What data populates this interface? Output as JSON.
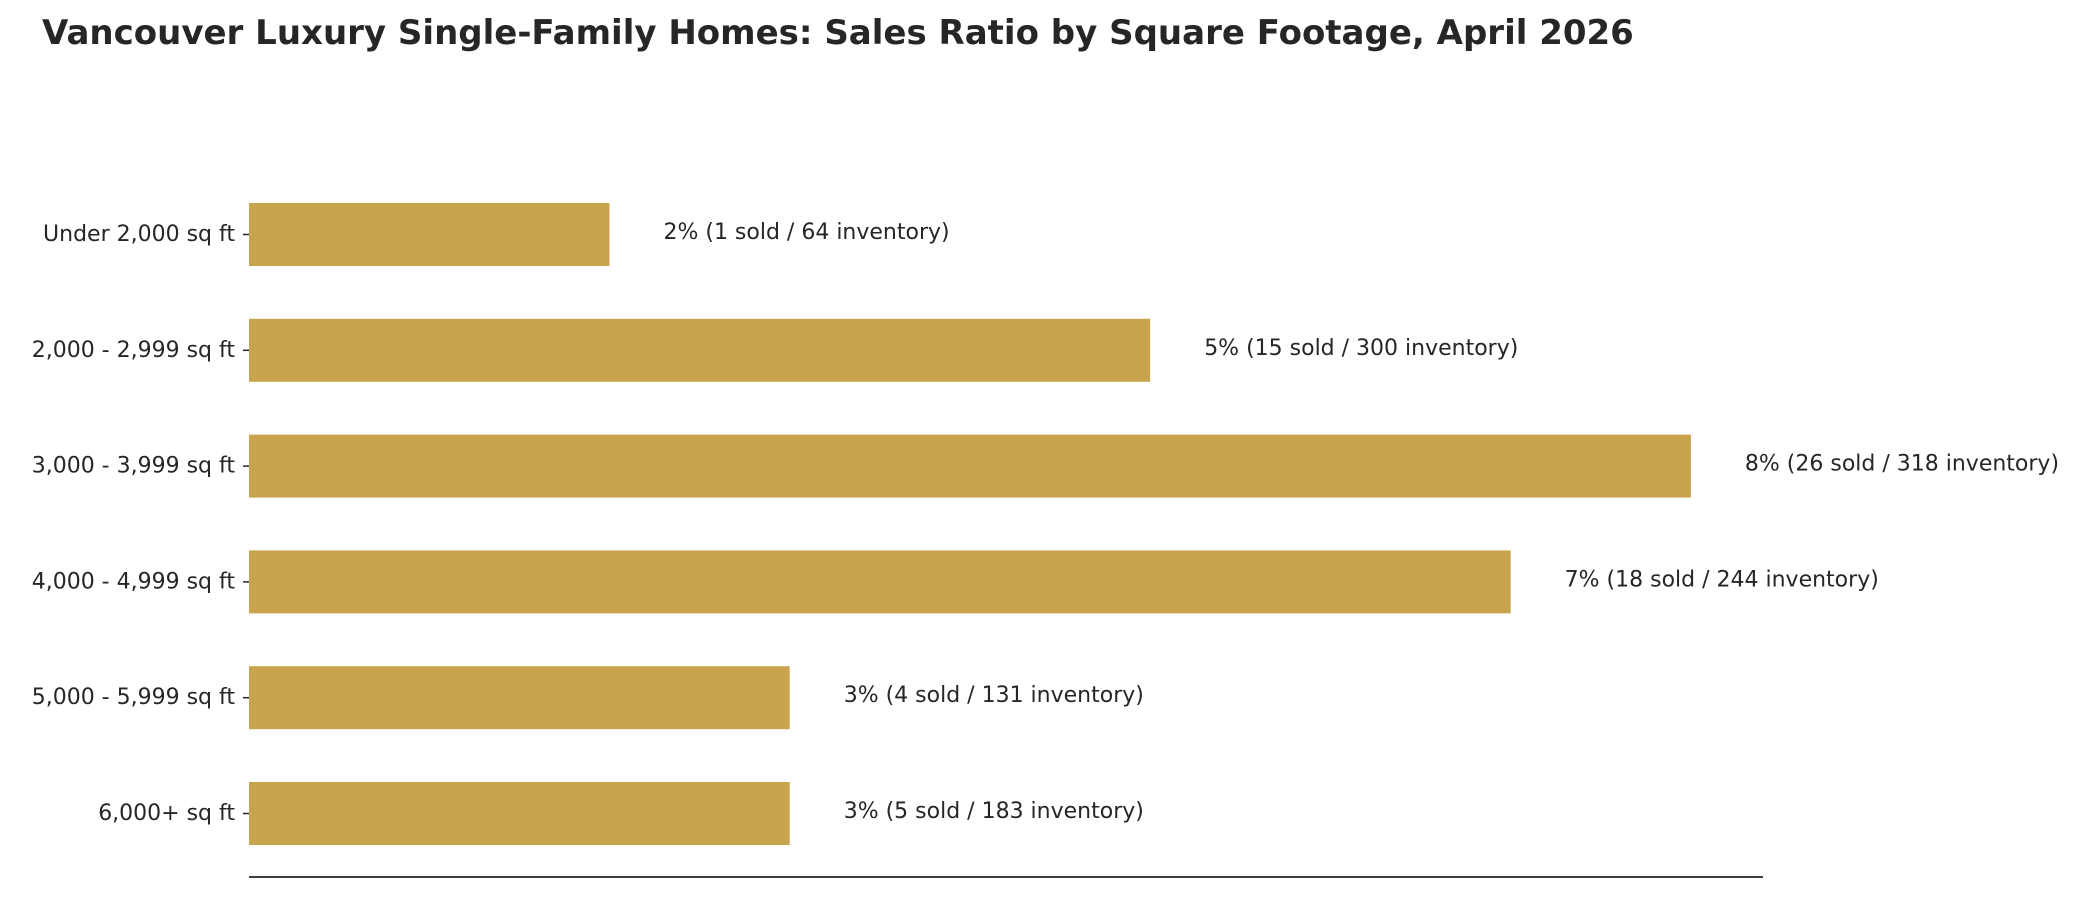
{
  "chart_data": {
    "type": "bar",
    "orientation": "horizontal",
    "title": "Vancouver Luxury Single-Family Homes: Sales Ratio by Square Footage, April 2026",
    "xlabel": "",
    "ylabel": "",
    "categories": [
      "Under 2,000 sq ft",
      "2,000 - 2,999 sq ft",
      "3,000 - 3,999 sq ft",
      "4,000 - 4,999 sq ft",
      "5,000 - 5,999 sq ft",
      "6,000+ sq ft"
    ],
    "values": [
      2,
      5,
      8,
      7,
      3,
      3
    ],
    "unit": "%",
    "sold": [
      1,
      15,
      26,
      18,
      4,
      5
    ],
    "inventory": [
      64,
      300,
      318,
      244,
      131,
      183
    ],
    "data_labels": [
      "2%  (1 sold / 64 inventory)",
      "5%  (15 sold / 300 inventory)",
      "8%  (26 sold / 318 inventory)",
      "7%  (18 sold / 244 inventory)",
      "3%  (4 sold / 131 inventory)",
      "3%  (5 sold / 183 inventory)"
    ],
    "xlim": [
      0,
      8.4
    ],
    "bar_color": "#c9a44e",
    "grid": false,
    "legend": "none"
  }
}
